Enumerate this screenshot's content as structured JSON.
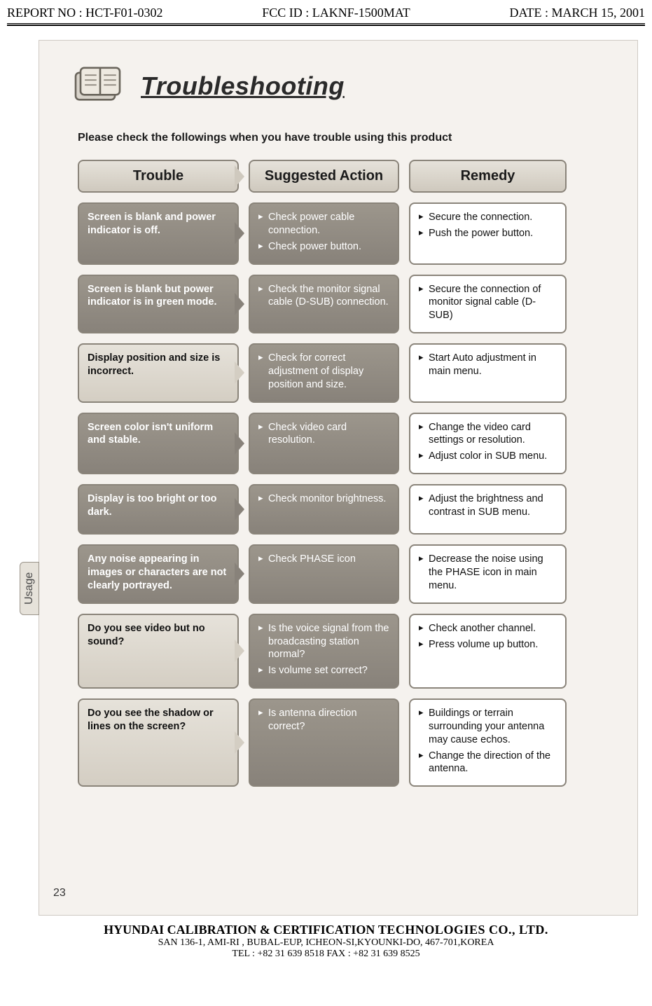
{
  "header": {
    "report_no": "REPORT NO : HCT-F01-0302",
    "fcc_id": "FCC ID : LAKNF-1500MAT",
    "date": "DATE : MARCH 15, 2001"
  },
  "page": {
    "title": "Troubleshooting",
    "intro": "Please check the followings when you have trouble using this product",
    "side_tab": "Usage",
    "page_number": "23",
    "icon_name": "manual-book-icon"
  },
  "columns": {
    "trouble": "Trouble",
    "action": "Suggested Action",
    "remedy": "Remedy"
  },
  "rows": [
    {
      "trouble": "Screen is blank and power indicator is off.",
      "action": [
        "Check power cable connection.",
        "Check power button."
      ],
      "remedy": [
        "Secure the connection.",
        "Push the power button."
      ],
      "trouble_variant": "dark"
    },
    {
      "trouble": "Screen is blank but power indicator is in green mode.",
      "action": [
        "Check the monitor signal cable (D-SUB) connection."
      ],
      "remedy": [
        "Secure the connection of monitor signal cable (D-SUB)"
      ],
      "trouble_variant": "dark"
    },
    {
      "trouble": "Display position and size is incorrect.",
      "action": [
        "Check for correct adjustment of display position and size."
      ],
      "remedy": [
        "Start Auto adjustment in main menu."
      ],
      "trouble_variant": "light"
    },
    {
      "trouble": "Screen color isn't uniform and stable.",
      "action": [
        "Check video card resolution."
      ],
      "remedy": [
        "Change the video card settings or resolution.",
        "Adjust color in SUB menu."
      ],
      "trouble_variant": "dark"
    },
    {
      "trouble": "Display is too bright or too dark.",
      "action": [
        "Check monitor brightness."
      ],
      "remedy": [
        "Adjust the brightness and contrast in SUB menu."
      ],
      "trouble_variant": "dark"
    },
    {
      "trouble": "Any noise appearing in images or characters are not clearly portrayed.",
      "action": [
        "Check PHASE icon"
      ],
      "remedy": [
        "Decrease the noise using the PHASE icon in main menu."
      ],
      "trouble_variant": "dark"
    },
    {
      "trouble": "Do you see video but no sound?",
      "action": [
        "Is the voice signal from the broadcasting station normal?",
        "Is volume set correct?"
      ],
      "remedy": [
        "Check another channel.",
        "Press volume up button."
      ],
      "trouble_variant": "light"
    },
    {
      "trouble": "Do you see the shadow or lines on the screen?",
      "action": [
        "Is antenna direction correct?"
      ],
      "remedy": [
        "Buildings or terrain surrounding your antenna may cause echos.",
        "Change the direction of the antenna."
      ],
      "trouble_variant": "light"
    }
  ],
  "footer": {
    "line1_a": "HYUNDAI CALIBRATION & CERTIFICATION ",
    "line1_b": "TECHNOLOGIES CO., LTD.",
    "line2": "SAN 136-1, AMI-RI , BUBAL-EUP, ICHEON-SI,KYOUNKI-DO, 467-701,KOREA",
    "line3": "TEL : +82 31 639 8518     FAX : +82 31 639 8525"
  },
  "style": {
    "title_fontsize": 36,
    "intro_fontsize": 16,
    "header_fontsize": 20,
    "cell_fontsize": 14.5,
    "colors": {
      "page_bg": "#f5f2ee",
      "text": "#111111",
      "dark_cell_bg_top": "#9c968c",
      "dark_cell_bg_bot": "#88827a",
      "dark_cell_text": "#ffffff",
      "light_cell_bg_top": "#e6e2da",
      "light_cell_bg_bot": "#d4cec3",
      "border": "#8a847a"
    },
    "grid": {
      "cols": [
        "230px",
        "215px",
        "225px"
      ],
      "col_gap": "14px",
      "row_gap": "14px"
    }
  }
}
